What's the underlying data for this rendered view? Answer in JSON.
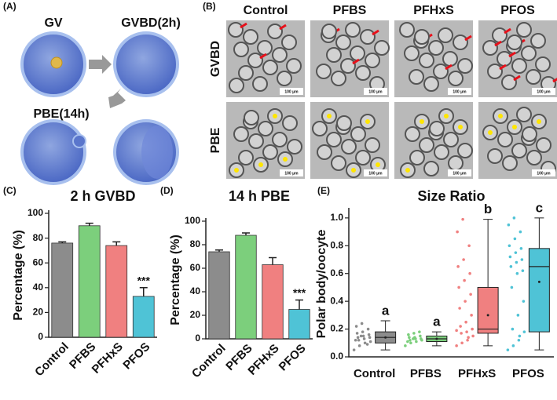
{
  "panel_labels": [
    "(A)",
    "(B)",
    "(C)",
    "(D)",
    "(E)"
  ],
  "diagram": {
    "gv": "GV",
    "gvbd": "GVBD(2h)",
    "pbe": "PBE(14h)"
  },
  "micrographs": {
    "columns": [
      "Control",
      "PFBS",
      "PFHxS",
      "PFOS"
    ],
    "rows": [
      "GVBD",
      "PBE"
    ],
    "scale_bar": "100 μm"
  },
  "chart_data": [
    {
      "type": "bar",
      "title": "2 h GVBD",
      "y_label": "Percentage (%)",
      "categories": [
        "Control",
        "PFBS",
        "PFHxS",
        "PFOS"
      ],
      "values": [
        76,
        90,
        74,
        33
      ],
      "errors": [
        1,
        2,
        3,
        7
      ],
      "colors": [
        "#8c8c8c",
        "#7ccf7c",
        "#f08080",
        "#4fc3d6"
      ],
      "value_annotations": [
        null,
        null,
        null,
        "***"
      ],
      "ylim": [
        0,
        100
      ],
      "yticks": [
        0,
        20,
        40,
        60,
        80,
        100
      ]
    },
    {
      "type": "bar",
      "title": "14 h PBE",
      "y_label": "Percentage (%)",
      "categories": [
        "Control",
        "PFBS",
        "PFHxS",
        "PFOS"
      ],
      "values": [
        74,
        88,
        63,
        25
      ],
      "errors": [
        1.5,
        2,
        6,
        8
      ],
      "colors": [
        "#8c8c8c",
        "#7ccf7c",
        "#f08080",
        "#4fc3d6"
      ],
      "value_annotations": [
        null,
        null,
        null,
        "***"
      ],
      "ylim": [
        0,
        100
      ],
      "yticks": [
        0,
        20,
        40,
        60,
        80,
        100
      ]
    },
    {
      "type": "box",
      "title": "Size Ratio",
      "y_label": "Polar body/oocyte",
      "categories": [
        "Control",
        "PFBS",
        "PFHxS",
        "PFOS"
      ],
      "colors": [
        "#8c8c8c",
        "#7ccf7c",
        "#f08080",
        "#4fc3d6"
      ],
      "whisker_low": [
        0.05,
        0.08,
        0.08,
        0.05
      ],
      "q1": [
        0.1,
        0.11,
        0.17,
        0.18
      ],
      "median": [
        0.14,
        0.13,
        0.2,
        0.65
      ],
      "q3": [
        0.18,
        0.15,
        0.5,
        0.78
      ],
      "whisker_high": [
        0.26,
        0.18,
        0.99,
        1.0
      ],
      "mean": [
        0.14,
        0.13,
        0.3,
        0.54
      ],
      "points": [
        [
          0.05,
          0.08,
          0.1,
          0.11,
          0.12,
          0.13,
          0.14,
          0.14,
          0.15,
          0.16,
          0.17,
          0.18,
          0.2,
          0.22,
          0.24,
          0.09,
          0.12,
          0.15
        ],
        [
          0.08,
          0.1,
          0.11,
          0.12,
          0.12,
          0.13,
          0.13,
          0.14,
          0.14,
          0.15,
          0.16,
          0.17,
          0.18,
          0.11,
          0.13
        ],
        [
          0.08,
          0.1,
          0.12,
          0.15,
          0.17,
          0.18,
          0.2,
          0.22,
          0.25,
          0.3,
          0.35,
          0.4,
          0.45,
          0.5,
          0.55,
          0.6,
          0.65,
          0.7,
          0.8,
          0.9,
          0.99,
          0.14,
          0.19
        ],
        [
          0.05,
          0.08,
          0.12,
          0.18,
          0.2,
          0.3,
          0.4,
          0.5,
          0.6,
          0.62,
          0.65,
          0.68,
          0.7,
          0.72,
          0.75,
          0.78,
          0.8,
          0.85,
          0.9,
          0.95,
          1.0,
          0.15
        ]
      ],
      "letters": [
        "a",
        "a",
        "b",
        "c"
      ],
      "ylim": [
        0,
        1.05
      ],
      "yticks": [
        {
          "value": 0,
          "label": "0.0"
        },
        0.2,
        0.4,
        0.6,
        0.8,
        {
          "value": 1,
          "label": "1.0"
        }
      ]
    }
  ]
}
